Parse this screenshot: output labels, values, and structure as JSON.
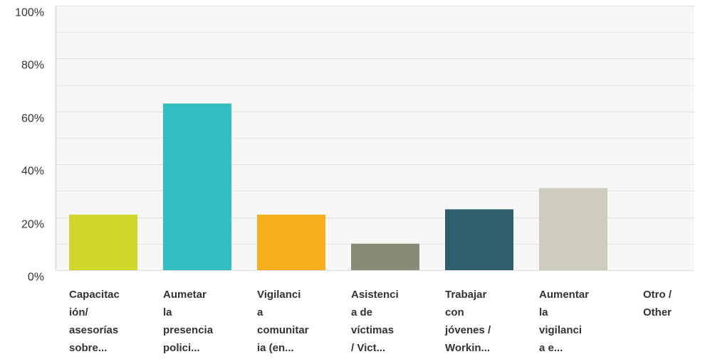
{
  "chart_data": {
    "type": "bar",
    "categories": [
      [
        "Capacitac",
        "ión/",
        "asesorías",
        "sobre..."
      ],
      [
        "Aumetar",
        "la",
        "presencia",
        "polici..."
      ],
      [
        "Vigilanci",
        "a",
        "comunitar",
        "ia (en..."
      ],
      [
        "Asistenci",
        "a de",
        "víctimas",
        "/ Vict..."
      ],
      [
        "Trabajar",
        "con",
        "jóvenes /",
        "Workin..."
      ],
      [
        "Aumentar",
        "la",
        "vigilanci",
        "a e..."
      ],
      [
        "Otro /",
        "Other"
      ]
    ],
    "values": [
      21,
      63,
      21,
      10,
      23,
      31,
      0
    ],
    "colors": [
      "#d0d62a",
      "#33bec1",
      "#f7ae1e",
      "#8a8a78",
      "#2e5f6c",
      "#cecdbd",
      "#999999"
    ],
    "ylim": [
      0,
      100
    ],
    "yticks": [
      {
        "value": 0,
        "label": "0%"
      },
      {
        "value": 20,
        "label": "20%"
      },
      {
        "value": 40,
        "label": "40%"
      },
      {
        "value": 60,
        "label": "60%"
      },
      {
        "value": 80,
        "label": "80%"
      },
      {
        "value": 100,
        "label": "100%"
      }
    ],
    "minor_yticks": [
      10,
      30,
      50,
      70,
      90
    ],
    "grid": true
  }
}
